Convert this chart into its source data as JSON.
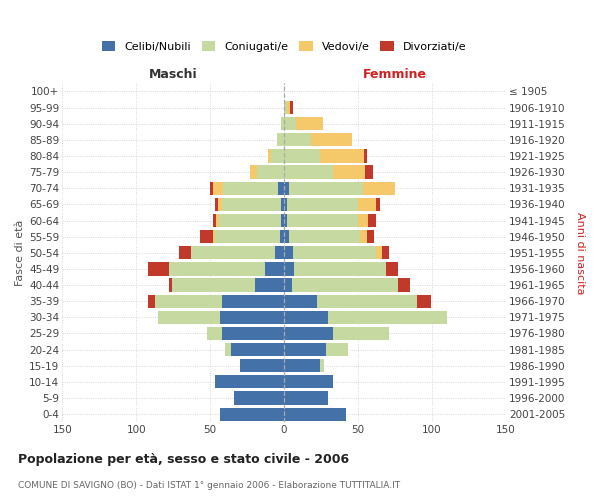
{
  "age_groups": [
    "0-4",
    "5-9",
    "10-14",
    "15-19",
    "20-24",
    "25-29",
    "30-34",
    "35-39",
    "40-44",
    "45-49",
    "50-54",
    "55-59",
    "60-64",
    "65-69",
    "70-74",
    "75-79",
    "80-84",
    "85-89",
    "90-94",
    "95-99",
    "100+"
  ],
  "birth_years": [
    "2001-2005",
    "1996-2000",
    "1991-1995",
    "1986-1990",
    "1981-1985",
    "1976-1980",
    "1971-1975",
    "1966-1970",
    "1961-1965",
    "1956-1960",
    "1951-1955",
    "1946-1950",
    "1941-1945",
    "1936-1940",
    "1931-1935",
    "1926-1930",
    "1921-1925",
    "1916-1920",
    "1911-1915",
    "1906-1910",
    "≤ 1905"
  ],
  "males": {
    "celibi": [
      43,
      34,
      47,
      30,
      36,
      42,
      43,
      42,
      20,
      13,
      6,
      3,
      2,
      2,
      4,
      0,
      0,
      0,
      0,
      0,
      0
    ],
    "coniugati": [
      0,
      0,
      0,
      0,
      4,
      10,
      42,
      45,
      56,
      65,
      57,
      44,
      42,
      40,
      37,
      18,
      9,
      5,
      2,
      0,
      0
    ],
    "vedovi": [
      0,
      0,
      0,
      0,
      0,
      0,
      0,
      0,
      0,
      0,
      0,
      1,
      2,
      3,
      7,
      5,
      2,
      0,
      0,
      0,
      0
    ],
    "divorziati": [
      0,
      0,
      0,
      0,
      0,
      0,
      0,
      5,
      2,
      14,
      8,
      9,
      2,
      2,
      2,
      0,
      0,
      0,
      0,
      0,
      0
    ]
  },
  "females": {
    "nubili": [
      42,
      30,
      33,
      24,
      28,
      33,
      30,
      22,
      5,
      7,
      6,
      3,
      2,
      2,
      3,
      0,
      0,
      0,
      0,
      0,
      0
    ],
    "coniugate": [
      0,
      0,
      0,
      3,
      15,
      38,
      80,
      68,
      72,
      62,
      56,
      48,
      48,
      48,
      50,
      33,
      24,
      18,
      8,
      2,
      0
    ],
    "vedove": [
      0,
      0,
      0,
      0,
      0,
      0,
      0,
      0,
      0,
      0,
      4,
      5,
      7,
      12,
      22,
      22,
      30,
      28,
      18,
      2,
      0
    ],
    "divorziate": [
      0,
      0,
      0,
      0,
      0,
      0,
      0,
      9,
      8,
      8,
      5,
      5,
      5,
      3,
      0,
      5,
      2,
      0,
      0,
      2,
      0
    ]
  },
  "colors": {
    "celibi": "#4472a8",
    "coniugati": "#c5d9a0",
    "vedovi": "#f5c96a",
    "divorziati": "#c0392b"
  },
  "title": "Popolazione per età, sesso e stato civile - 2006",
  "subtitle": "COMUNE DI SAVIGNO (BO) - Dati ISTAT 1° gennaio 2006 - Elaborazione TUTTITALIA.IT",
  "xlabel_left": "Maschi",
  "xlabel_right": "Femmine",
  "ylabel_left": "Fasce di età",
  "ylabel_right": "Anni di nascita",
  "xlim": 150,
  "xticks": [
    -150,
    -100,
    -50,
    0,
    50,
    100,
    150
  ],
  "legend_labels": [
    "Celibi/Nubili",
    "Coniugati/e",
    "Vedovi/e",
    "Divorziati/e"
  ],
  "bg_color": "#ffffff",
  "title_fontsize": 9,
  "subtitle_fontsize": 6.5,
  "legend_fontsize": 8,
  "tick_fontsize": 7.5
}
